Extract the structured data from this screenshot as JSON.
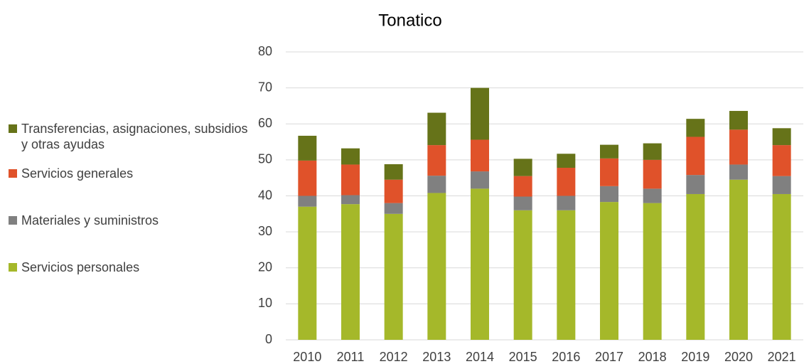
{
  "chart_data": {
    "type": "bar",
    "stacked": true,
    "title": "Tonatico",
    "categories": [
      "2010",
      "2011",
      "2012",
      "2013",
      "2014",
      "2015",
      "2016",
      "2017",
      "2018",
      "2019",
      "2020",
      "2021"
    ],
    "series": [
      {
        "name": "Servicios personales",
        "color": "#a5b82a",
        "values": [
          37,
          37.7,
          35,
          40.8,
          42,
          36,
          36,
          38.3,
          38,
          40.5,
          44.5,
          40.5
        ]
      },
      {
        "name": "Materiales y suministros",
        "color": "#808080",
        "values": [
          3,
          2.5,
          3,
          4.8,
          4.8,
          3.8,
          4,
          4.4,
          4,
          5.3,
          4.2,
          5
        ]
      },
      {
        "name": "Servicios generales",
        "color": "#e0522a",
        "values": [
          9.8,
          8.5,
          6.5,
          8.5,
          8.8,
          5.7,
          7.8,
          7.7,
          8,
          10.6,
          9.7,
          8.6
        ]
      },
      {
        "name": "Transferencias, asignaciones, subsidios y otras ayudas",
        "color": "#667319",
        "values": [
          6.9,
          4.5,
          4.3,
          9,
          14.4,
          4.8,
          3.9,
          3.8,
          4.6,
          5,
          5.2,
          4.7
        ]
      }
    ],
    "ylim": [
      0,
      80
    ],
    "yticks": [
      0,
      10,
      20,
      30,
      40,
      50,
      60,
      70,
      80
    ],
    "grid": true,
    "legend": "left"
  }
}
